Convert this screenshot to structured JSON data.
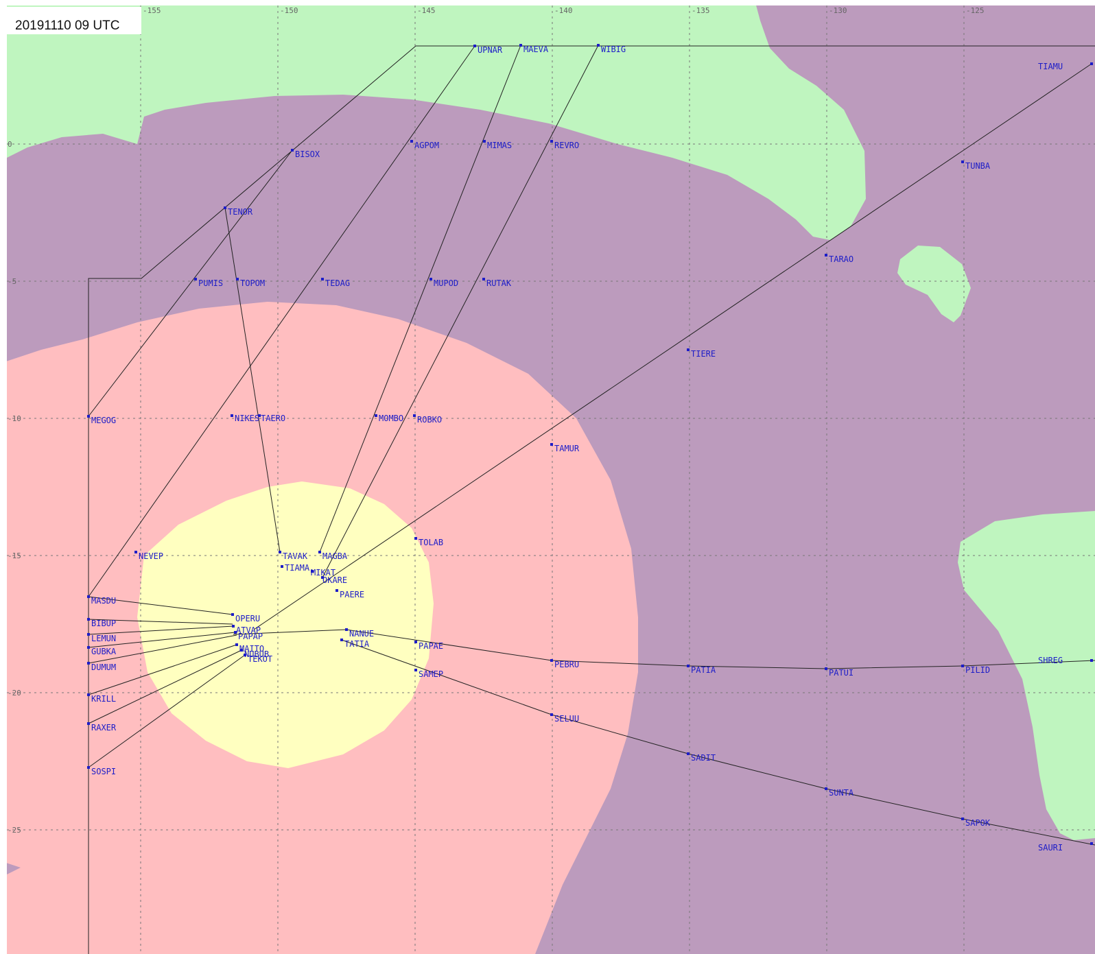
{
  "timestamp": "20191110 09 UTC",
  "colors": {
    "background_purple": "#bc9bbd",
    "zone_green": "#bff5bf",
    "zone_pink": "#ffbec0",
    "zone_yellow": "#ffffc0",
    "waypoint": "#1d1dc8",
    "route": "#222222",
    "grid": "#777777"
  },
  "grid": {
    "longitude_labels": [
      "-155",
      "-150",
      "-145",
      "-140",
      "-135",
      "-130",
      "-125"
    ],
    "latitude_labels": [
      "0",
      "-5",
      "-10",
      "-15",
      "-20",
      "-25"
    ]
  },
  "waypoints": [
    {
      "name": "UPNAR"
    },
    {
      "name": "MAEVA"
    },
    {
      "name": "WIBIG"
    },
    {
      "name": "TIAMU"
    },
    {
      "name": "BISOX"
    },
    {
      "name": "AGPOM"
    },
    {
      "name": "MIMAS"
    },
    {
      "name": "REVRO"
    },
    {
      "name": "TUNBA"
    },
    {
      "name": "TENOR"
    },
    {
      "name": "TARAO"
    },
    {
      "name": "PUMIS"
    },
    {
      "name": "TOPOM"
    },
    {
      "name": "TEDAG"
    },
    {
      "name": "MUPOD"
    },
    {
      "name": "RUTAK"
    },
    {
      "name": "TIERE"
    },
    {
      "name": "MEGOG"
    },
    {
      "name": "NIKES"
    },
    {
      "name": "TAERO"
    },
    {
      "name": "MOMBO"
    },
    {
      "name": "ROBKO"
    },
    {
      "name": "TAMUR"
    },
    {
      "name": "TOLAB"
    },
    {
      "name": "NEVEP"
    },
    {
      "name": "TAVAK"
    },
    {
      "name": "MAGBA"
    },
    {
      "name": "TIAMA"
    },
    {
      "name": "MIKAT"
    },
    {
      "name": "OKARE"
    },
    {
      "name": "PAERE"
    },
    {
      "name": "MASDU"
    },
    {
      "name": "OPERU"
    },
    {
      "name": "BIBUP"
    },
    {
      "name": "ATVAP"
    },
    {
      "name": "LEMUN"
    },
    {
      "name": "NANUE"
    },
    {
      "name": "PAPAP"
    },
    {
      "name": "TATIA"
    },
    {
      "name": "PAPAE"
    },
    {
      "name": "GUBKA"
    },
    {
      "name": "MAITO"
    },
    {
      "name": "DUMUM"
    },
    {
      "name": "NUBUB"
    },
    {
      "name": "TEKOT"
    },
    {
      "name": "PEBRU"
    },
    {
      "name": "PATIA"
    },
    {
      "name": "PATUI"
    },
    {
      "name": "PILID"
    },
    {
      "name": "SHREG"
    },
    {
      "name": "SAMEP"
    },
    {
      "name": "KRILL"
    },
    {
      "name": "SELUU"
    },
    {
      "name": "RAXER"
    },
    {
      "name": "SADIT"
    },
    {
      "name": "SOSPI"
    },
    {
      "name": "SUNTA"
    },
    {
      "name": "SAPOK"
    },
    {
      "name": "SAURI"
    }
  ]
}
